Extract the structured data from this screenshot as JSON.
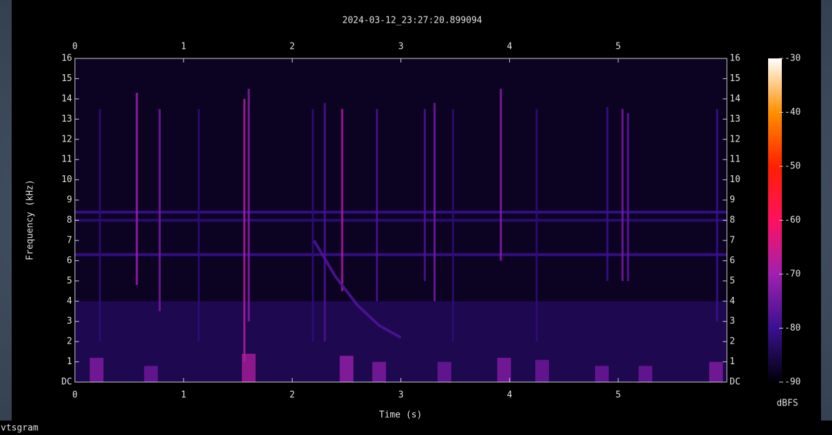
{
  "chart_data": {
    "type": "spectrogram",
    "title": "2024-03-12_23:27:20.899094",
    "x_label": "Time (s)",
    "y_label": "Frequency (kHz)",
    "colorbar_label": "dBFS",
    "footer": "vtsgram",
    "xlim": [
      0,
      6
    ],
    "xticks": [
      0,
      1,
      2,
      3,
      4,
      5
    ],
    "ylim": [
      0,
      16
    ],
    "yticks": [
      {
        "value": 0,
        "label": "DC"
      },
      1,
      2,
      3,
      4,
      5,
      6,
      7,
      8,
      9,
      10,
      11,
      12,
      13,
      14,
      15,
      16
    ],
    "clim": [
      -90,
      -30
    ],
    "cticks": [
      -90,
      -80,
      -70,
      -60,
      -50,
      -40,
      -30
    ],
    "colormap": [
      "#000008",
      "#3a1090",
      "#a020b0",
      "#ff1060",
      "#ff2000",
      "#ff9000",
      "#ffffff"
    ],
    "noise_floor": -88,
    "low_band": {
      "f": [
        0,
        4
      ],
      "level": -84
    },
    "bands": [
      {
        "f": 8.4,
        "level": -80
      },
      {
        "f": 8.0,
        "level": -82
      },
      {
        "f": 6.3,
        "level": -80
      }
    ],
    "streaks": [
      {
        "t": 0.57,
        "f": [
          4.8,
          14.3
        ],
        "level": -70
      },
      {
        "t": 0.78,
        "f": [
          3.5,
          13.5
        ],
        "level": -74
      },
      {
        "t": 1.56,
        "f": [
          1,
          14
        ],
        "level": -68
      },
      {
        "t": 1.6,
        "f": [
          3,
          14.5
        ],
        "level": -72
      },
      {
        "t": 2.46,
        "f": [
          4.5,
          13.5
        ],
        "level": -68
      },
      {
        "t": 2.3,
        "f": [
          2,
          13.8
        ],
        "level": -78
      },
      {
        "t": 2.78,
        "f": [
          4,
          13.5
        ],
        "level": -78
      },
      {
        "t": 3.22,
        "f": [
          5,
          13.5
        ],
        "level": -78
      },
      {
        "t": 3.31,
        "f": [
          4,
          13.8
        ],
        "level": -74
      },
      {
        "t": 3.92,
        "f": [
          6,
          14.5
        ],
        "level": -72
      },
      {
        "t": 5.04,
        "f": [
          5,
          13.5
        ],
        "level": -74
      },
      {
        "t": 5.09,
        "f": [
          5,
          13.3
        ],
        "level": -76
      },
      {
        "t": 4.9,
        "f": [
          5,
          13.6
        ],
        "level": -80
      },
      {
        "t": 5.91,
        "f": [
          3,
          13.5
        ],
        "level": -80
      },
      {
        "t": 0.23,
        "f": [
          2,
          13.5
        ],
        "level": -82
      },
      {
        "t": 1.14,
        "f": [
          2,
          13.5
        ],
        "level": -82
      },
      {
        "t": 2.19,
        "f": [
          2,
          13.5
        ],
        "level": -82
      },
      {
        "t": 3.48,
        "f": [
          2,
          13.5
        ],
        "level": -82
      },
      {
        "t": 4.25,
        "f": [
          2,
          13.5
        ],
        "level": -82
      }
    ],
    "bursts": [
      {
        "t": 0.2,
        "f": [
          0,
          1.2
        ],
        "level": -72
      },
      {
        "t": 0.7,
        "f": [
          0,
          0.8
        ],
        "level": -74
      },
      {
        "t": 1.6,
        "f": [
          0,
          1.4
        ],
        "level": -68
      },
      {
        "t": 2.5,
        "f": [
          0,
          1.3
        ],
        "level": -70
      },
      {
        "t": 2.8,
        "f": [
          0,
          1
        ],
        "level": -72
      },
      {
        "t": 3.4,
        "f": [
          0,
          1
        ],
        "level": -74
      },
      {
        "t": 3.95,
        "f": [
          0,
          1.2
        ],
        "level": -72
      },
      {
        "t": 4.3,
        "f": [
          0,
          1.1
        ],
        "level": -74
      },
      {
        "t": 4.85,
        "f": [
          0,
          0.8
        ],
        "level": -74
      },
      {
        "t": 5.25,
        "f": [
          0,
          0.8
        ],
        "level": -74
      },
      {
        "t": 5.9,
        "f": [
          0,
          1
        ],
        "level": -72
      }
    ],
    "chirp": {
      "t": [
        2.2,
        2.4,
        2.6,
        2.8,
        3.0
      ],
      "f": [
        7,
        5.2,
        3.8,
        2.8,
        2.2
      ],
      "level": -78
    }
  }
}
